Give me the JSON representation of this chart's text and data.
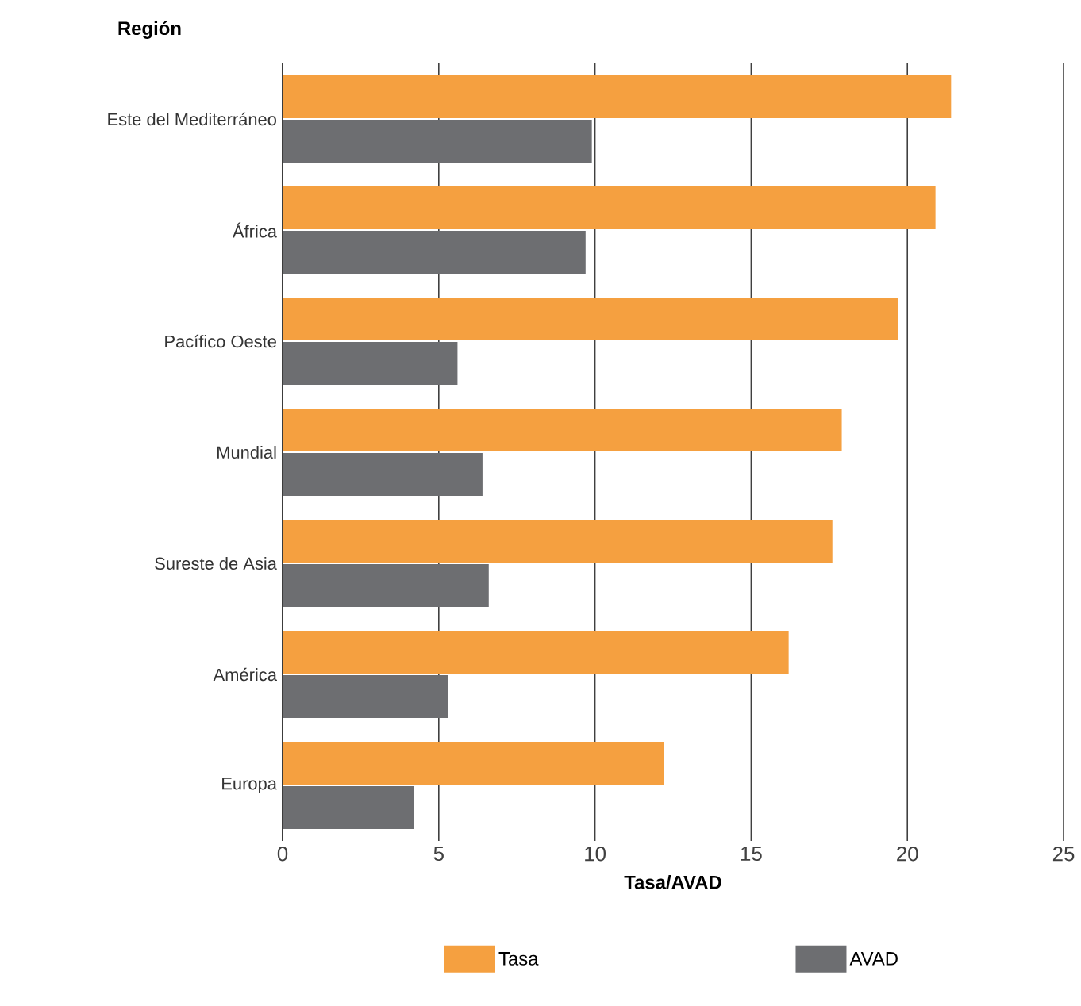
{
  "chart_data": {
    "type": "bar",
    "orientation": "horizontal",
    "ylabel": "Región",
    "xlabel": "Tasa/AVAD",
    "categories": [
      "Este del Mediterráneo",
      "África",
      "Pacífico Oeste",
      "Mundial",
      "Sureste de Asia",
      "América",
      "Europa"
    ],
    "series": [
      {
        "name": "Tasa",
        "color": "#f5a040",
        "values": [
          21.4,
          20.9,
          19.7,
          17.9,
          17.6,
          16.2,
          12.2
        ]
      },
      {
        "name": "AVAD",
        "color": "#6d6e71",
        "values": [
          9.9,
          9.7,
          5.6,
          6.4,
          6.6,
          5.3,
          4.2
        ]
      }
    ],
    "xlim": [
      0,
      25
    ],
    "xticks": [
      0,
      5,
      10,
      15,
      20,
      25
    ],
    "grid": "x",
    "legend": "bottom"
  }
}
